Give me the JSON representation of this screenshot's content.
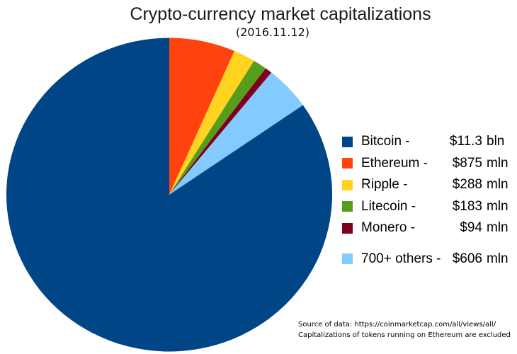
{
  "chart_data": {
    "type": "pie",
    "title": "Crypto-currency market capitalizations",
    "subtitle": "(2016.11.12)",
    "date": "2016.11.12",
    "legend_position": "right",
    "slices": [
      {
        "name": "Bitcoin",
        "legend_label": "Bitcoin -",
        "value_label": "$11.3",
        "unit": "bln",
        "market_cap_musd": 11300,
        "color": "#004586"
      },
      {
        "name": "Ethereum",
        "legend_label": "Ethereum -",
        "value_label": "$875",
        "unit": "mln",
        "market_cap_musd": 875,
        "color": "#FF420E"
      },
      {
        "name": "Ripple",
        "legend_label": "Ripple -",
        "value_label": "$288",
        "unit": "mln",
        "market_cap_musd": 288,
        "color": "#FFD320"
      },
      {
        "name": "Litecoin",
        "legend_label": "Litecoin -",
        "value_label": "$183",
        "unit": "mln",
        "market_cap_musd": 183,
        "color": "#579D1C"
      },
      {
        "name": "Monero",
        "legend_label": "Monero -",
        "value_label": "$94",
        "unit": "mln",
        "market_cap_musd": 94,
        "color": "#7E0021"
      },
      {
        "name": "700+ others",
        "legend_label": "700+ others -",
        "value_label": "$606",
        "unit": "mln",
        "market_cap_musd": 606,
        "color": "#83CAFF"
      }
    ],
    "draw_order_clockwise_from_top": [
      "Ethereum",
      "Ripple",
      "Litecoin",
      "Monero",
      "700+ others",
      "Bitcoin"
    ],
    "source_note": {
      "line1": "Source of data: https://coinmarketcap.com/all/views/all/",
      "line2": "Capitalizations of tokens running on Ethereum are excluded"
    }
  }
}
